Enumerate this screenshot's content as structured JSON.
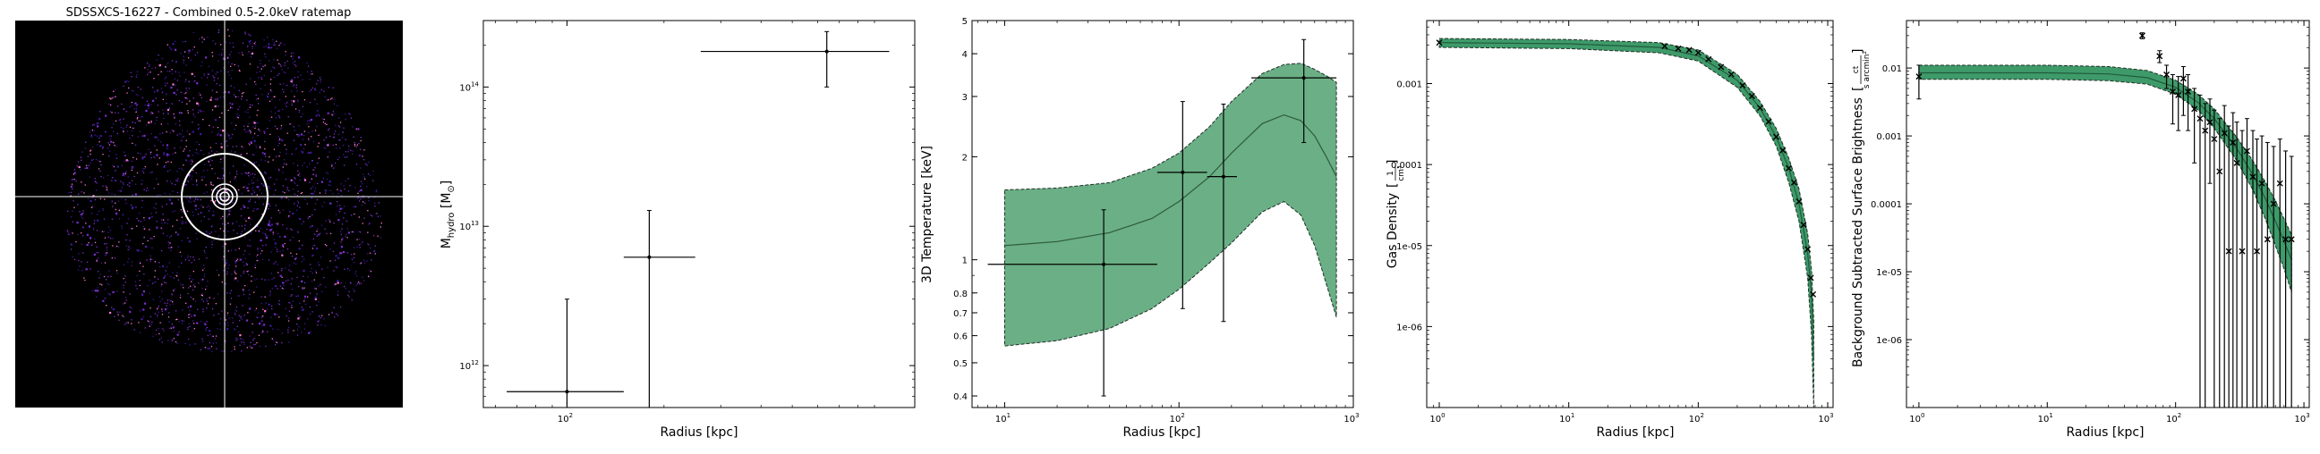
{
  "ratemap": {
    "title": "SDSSXCS-16227 - Combined 0.5-2.0keV ratemap",
    "colors": {
      "background": "#000000",
      "crosshair": "#ffffff",
      "rings": "#ffffff",
      "points_low": "#3a1a9a",
      "points_mid": "#7a2fd0",
      "points_high": "#ff7ad0"
    }
  },
  "charts": [
    {
      "name": "hydrostatic-mass",
      "xlabel": "Radius [kpc]",
      "ylabel_main": "M",
      "ylabel_sub": "hydro",
      "ylabel_unit": "[M",
      "ylabel_unit_sub": "⊙",
      "ylabel_close": "]",
      "xticks": [
        {
          "v": 100,
          "base": "10",
          "exp": "2"
        }
      ],
      "yticks": [
        {
          "v": 1000000000000.0,
          "base": "10",
          "exp": "12"
        },
        {
          "v": 10000000000000.0,
          "base": "10",
          "exp": "13"
        },
        {
          "v": 100000000000000.0,
          "base": "10",
          "exp": "14"
        }
      ]
    },
    {
      "name": "temperature-profile",
      "xlabel": "Radius [kpc]",
      "ylabel": "3D Temperature [keV]",
      "xticks": [
        {
          "v": 10,
          "base": "10",
          "exp": "1"
        },
        {
          "v": 100,
          "base": "10",
          "exp": "2"
        },
        {
          "v": 1000,
          "base": "10",
          "exp": "3"
        }
      ],
      "yticks": [
        {
          "v": 0.4,
          "label": "0.4"
        },
        {
          "v": 0.5,
          "label": "0.5"
        },
        {
          "v": 0.6,
          "label": "0.6"
        },
        {
          "v": 0.7,
          "label": "0.7"
        },
        {
          "v": 0.8,
          "label": "0.8"
        },
        {
          "v": 1,
          "label": "1"
        },
        {
          "v": 2,
          "label": "2"
        },
        {
          "v": 3,
          "label": "3"
        },
        {
          "v": 4,
          "label": "4"
        },
        {
          "v": 5,
          "label": "5"
        }
      ]
    },
    {
      "name": "gas-density",
      "xlabel": "Radius [kpc]",
      "ylabel": "Gas Density",
      "ylabel_frac_top": "1",
      "ylabel_frac_bot": "cm³",
      "xticks": [
        {
          "v": 1,
          "base": "10",
          "exp": "0"
        },
        {
          "v": 10,
          "base": "10",
          "exp": "1"
        },
        {
          "v": 100,
          "base": "10",
          "exp": "2"
        },
        {
          "v": 1000,
          "base": "10",
          "exp": "3"
        }
      ],
      "yticks": [
        {
          "v": 1e-06,
          "label": "1e-06"
        },
        {
          "v": 1e-05,
          "label": "1e-05"
        },
        {
          "v": 0.0001,
          "label": "0.0001"
        },
        {
          "v": 0.001,
          "label": "0.001"
        }
      ]
    },
    {
      "name": "surface-brightness",
      "xlabel": "Radius [kpc]",
      "ylabel": "Background Subtracted Surface Brightness",
      "ylabel_frac_top": "ct",
      "ylabel_frac_bot": "s arcmin²",
      "xticks": [
        {
          "v": 1,
          "base": "10",
          "exp": "0"
        },
        {
          "v": 10,
          "base": "10",
          "exp": "1"
        },
        {
          "v": 100,
          "base": "10",
          "exp": "2"
        },
        {
          "v": 1000,
          "base": "10",
          "exp": "3"
        }
      ],
      "yticks": [
        {
          "v": 1e-06,
          "label": "1e-06"
        },
        {
          "v": 1e-05,
          "label": "1e-05"
        },
        {
          "v": 0.0001,
          "label": "0.0001"
        },
        {
          "v": 0.001,
          "label": "0.001"
        },
        {
          "v": 0.01,
          "label": "0.01"
        }
      ]
    }
  ],
  "chart_data": [
    {
      "type": "scatter",
      "title": "",
      "xlabel": "Radius [kpc]",
      "ylabel": "M_hydro [M_⊙]",
      "xscale": "log",
      "yscale": "log",
      "xlim": [
        55,
        1200
      ],
      "ylim": [
        500000000000.0,
        300000000000000.0
      ],
      "points": [
        {
          "x": 100,
          "xlo": 65,
          "xhi": 150,
          "y": 650000000000.0,
          "ylo": 100000000000.0,
          "yhi": 3000000000000.0
        },
        {
          "x": 180,
          "xlo": 150,
          "xhi": 250,
          "y": 6000000000000.0,
          "ylo": 100000000000.0,
          "yhi": 13000000000000.0
        },
        {
          "x": 640,
          "xlo": 260,
          "xhi": 1000,
          "y": 180000000000000.0,
          "ylo": 100000000000000.0,
          "yhi": 250000000000000.0
        }
      ]
    },
    {
      "type": "line",
      "title": "",
      "xlabel": "Radius [kpc]",
      "ylabel": "3D Temperature [keV]",
      "xscale": "log",
      "yscale": "log",
      "xlim": [
        6.5,
        1000
      ],
      "ylim": [
        0.37,
        5
      ],
      "model": [
        {
          "x": 10,
          "y": 1.1,
          "lo": 0.56,
          "hi": 1.6
        },
        {
          "x": 20,
          "y": 1.13,
          "lo": 0.58,
          "hi": 1.62
        },
        {
          "x": 40,
          "y": 1.2,
          "lo": 0.63,
          "hi": 1.68
        },
        {
          "x": 70,
          "y": 1.32,
          "lo": 0.72,
          "hi": 1.85
        },
        {
          "x": 100,
          "y": 1.48,
          "lo": 0.82,
          "hi": 2.05
        },
        {
          "x": 150,
          "y": 1.75,
          "lo": 0.98,
          "hi": 2.45
        },
        {
          "x": 200,
          "y": 2.05,
          "lo": 1.12,
          "hi": 2.9
        },
        {
          "x": 300,
          "y": 2.5,
          "lo": 1.38,
          "hi": 3.5
        },
        {
          "x": 400,
          "y": 2.65,
          "lo": 1.48,
          "hi": 3.72
        },
        {
          "x": 500,
          "y": 2.55,
          "lo": 1.35,
          "hi": 3.75
        },
        {
          "x": 600,
          "y": 2.3,
          "lo": 1.1,
          "hi": 3.6
        },
        {
          "x": 700,
          "y": 2.0,
          "lo": 0.85,
          "hi": 3.45
        },
        {
          "x": 800,
          "y": 1.75,
          "lo": 0.68,
          "hi": 3.3
        }
      ],
      "points": [
        {
          "x": 37,
          "xlo": 8,
          "xhi": 75,
          "y": 0.97,
          "ylo": 0.4,
          "yhi": 1.4
        },
        {
          "x": 105,
          "xlo": 75,
          "xhi": 145,
          "y": 1.8,
          "ylo": 0.72,
          "yhi": 2.9
        },
        {
          "x": 180,
          "xlo": 145,
          "xhi": 215,
          "y": 1.75,
          "ylo": 0.66,
          "yhi": 2.85
        },
        {
          "x": 520,
          "xlo": 260,
          "xhi": 800,
          "y": 3.4,
          "ylo": 2.2,
          "yhi": 4.4
        }
      ]
    },
    {
      "type": "line",
      "title": "",
      "xlabel": "Radius [kpc]",
      "ylabel": "Gas Density [1/cm³]",
      "xscale": "log",
      "yscale": "log",
      "xlim": [
        0.8,
        1100
      ],
      "ylim": [
        1e-07,
        0.006
      ],
      "model": [
        {
          "x": 1,
          "y": 0.0032,
          "lo": 0.0028,
          "hi": 0.0036
        },
        {
          "x": 10,
          "y": 0.0031,
          "lo": 0.0027,
          "hi": 0.0035
        },
        {
          "x": 50,
          "y": 0.0028,
          "lo": 0.0024,
          "hi": 0.0032
        },
        {
          "x": 100,
          "y": 0.0022,
          "lo": 0.0019,
          "hi": 0.0026
        },
        {
          "x": 200,
          "y": 0.0011,
          "lo": 0.0009,
          "hi": 0.0013
        },
        {
          "x": 300,
          "y": 0.0005,
          "lo": 0.0004,
          "hi": 0.0006
        },
        {
          "x": 400,
          "y": 0.00022,
          "lo": 0.00017,
          "hi": 0.00028
        },
        {
          "x": 500,
          "y": 9e-05,
          "lo": 6e-05,
          "hi": 0.00012
        },
        {
          "x": 600,
          "y": 3.3e-05,
          "lo": 2e-05,
          "hi": 5e-05
        },
        {
          "x": 700,
          "y": 8e-06,
          "lo": 4e-06,
          "hi": 1.4e-05
        },
        {
          "x": 750,
          "y": 2.5e-06,
          "lo": 8e-07,
          "hi": 5e-06
        },
        {
          "x": 780,
          "y": 4e-07,
          "lo": 1e-07,
          "hi": 1.2e-06
        }
      ],
      "points": [
        {
          "x": 1,
          "y": 0.0032
        },
        {
          "x": 55,
          "y": 0.0029
        },
        {
          "x": 70,
          "y": 0.0027
        },
        {
          "x": 85,
          "y": 0.0026
        },
        {
          "x": 100,
          "y": 0.0024
        },
        {
          "x": 120,
          "y": 0.002
        },
        {
          "x": 150,
          "y": 0.0016
        },
        {
          "x": 180,
          "y": 0.0013
        },
        {
          "x": 220,
          "y": 0.00095
        },
        {
          "x": 260,
          "y": 0.0007
        },
        {
          "x": 300,
          "y": 0.0005
        },
        {
          "x": 350,
          "y": 0.00034
        },
        {
          "x": 400,
          "y": 0.00022
        },
        {
          "x": 450,
          "y": 0.00015
        },
        {
          "x": 500,
          "y": 9e-05
        },
        {
          "x": 550,
          "y": 6e-05
        },
        {
          "x": 600,
          "y": 3.5e-05
        },
        {
          "x": 650,
          "y": 1.8e-05
        },
        {
          "x": 700,
          "y": 9e-06
        },
        {
          "x": 740,
          "y": 4e-06
        },
        {
          "x": 770,
          "y": 2.5e-06
        }
      ]
    },
    {
      "type": "line",
      "title": "",
      "xlabel": "Radius [kpc]",
      "ylabel": "Background Subtracted Surface Brightness [ct/(s arcmin²)]",
      "xscale": "log",
      "yscale": "log",
      "xlim": [
        0.8,
        1100
      ],
      "ylim": [
        1e-07,
        0.05
      ],
      "model": [
        {
          "x": 1,
          "y": 0.0085,
          "lo": 0.0068,
          "hi": 0.011
        },
        {
          "x": 10,
          "y": 0.0085,
          "lo": 0.0068,
          "hi": 0.011
        },
        {
          "x": 30,
          "y": 0.0082,
          "lo": 0.0065,
          "hi": 0.0105
        },
        {
          "x": 60,
          "y": 0.0072,
          "lo": 0.0058,
          "hi": 0.0092
        },
        {
          "x": 100,
          "y": 0.0052,
          "lo": 0.0041,
          "hi": 0.0066
        },
        {
          "x": 150,
          "y": 0.0031,
          "lo": 0.0024,
          "hi": 0.0041
        },
        {
          "x": 200,
          "y": 0.0018,
          "lo": 0.0013,
          "hi": 0.0025
        },
        {
          "x": 300,
          "y": 0.00065,
          "lo": 0.00043,
          "hi": 0.00095
        },
        {
          "x": 400,
          "y": 0.00027,
          "lo": 0.00016,
          "hi": 0.00043
        },
        {
          "x": 500,
          "y": 0.00012,
          "lo": 6e-05,
          "hi": 0.00021
        },
        {
          "x": 600,
          "y": 5.5e-05,
          "lo": 2.4e-05,
          "hi": 0.00011
        },
        {
          "x": 700,
          "y": 2.8e-05,
          "lo": 1.1e-05,
          "hi": 6e-05
        },
        {
          "x": 800,
          "y": 1.5e-05,
          "lo": 5e-06,
          "hi": 3.5e-05
        }
      ],
      "points": [
        {
          "x": 1,
          "y": 0.0075,
          "ylo": 0.0035,
          "yhi": 0.011
        },
        {
          "x": 55,
          "y": 0.03,
          "ylo": 0.027,
          "yhi": 0.033
        },
        {
          "x": 75,
          "y": 0.015,
          "ylo": 0.012,
          "yhi": 0.018
        },
        {
          "x": 85,
          "y": 0.008,
          "ylo": 0.005,
          "yhi": 0.011
        },
        {
          "x": 95,
          "y": 0.0045,
          "ylo": 0.0015,
          "yhi": 0.008
        },
        {
          "x": 105,
          "y": 0.004,
          "ylo": 0.0012,
          "yhi": 0.0075
        },
        {
          "x": 115,
          "y": 0.007,
          "ylo": 0.002,
          "yhi": 0.0105
        },
        {
          "x": 125,
          "y": 0.0045,
          "ylo": 0.0012,
          "yhi": 0.008
        },
        {
          "x": 140,
          "y": 0.0025,
          "ylo": 0.0004,
          "yhi": 0.005
        },
        {
          "x": 155,
          "y": 0.0018,
          "ylo": 1e-07,
          "yhi": 0.004
        },
        {
          "x": 170,
          "y": 0.0012,
          "ylo": 1e-07,
          "yhi": 0.003
        },
        {
          "x": 185,
          "y": 0.0016,
          "ylo": 0.0002,
          "yhi": 0.0035
        },
        {
          "x": 200,
          "y": 0.0009,
          "ylo": 1e-07,
          "yhi": 0.0024
        },
        {
          "x": 220,
          "y": 0.0003,
          "ylo": 1e-07,
          "yhi": 0.0018
        },
        {
          "x": 240,
          "y": 0.0011,
          "ylo": 1e-07,
          "yhi": 0.0028
        },
        {
          "x": 260,
          "y": 2e-05,
          "ylo": 1e-07,
          "yhi": 0.0014
        },
        {
          "x": 280,
          "y": 0.0008,
          "ylo": 1e-07,
          "yhi": 0.0022
        },
        {
          "x": 300,
          "y": 0.0004,
          "ylo": 1e-07,
          "yhi": 0.0016
        },
        {
          "x": 330,
          "y": 2e-05,
          "ylo": 1e-07,
          "yhi": 0.0012
        },
        {
          "x": 360,
          "y": 0.0006,
          "ylo": 1e-07,
          "yhi": 0.0018
        },
        {
          "x": 400,
          "y": 0.00025,
          "ylo": 1e-07,
          "yhi": 0.0012
        },
        {
          "x": 430,
          "y": 2e-05,
          "ylo": 1e-07,
          "yhi": 0.0009
        },
        {
          "x": 470,
          "y": 0.0002,
          "ylo": 1e-07,
          "yhi": 0.001
        },
        {
          "x": 520,
          "y": 3e-05,
          "ylo": 1e-07,
          "yhi": 0.0008
        },
        {
          "x": 580,
          "y": 0.0001,
          "ylo": 1e-07,
          "yhi": 0.0007
        },
        {
          "x": 650,
          "y": 0.0002,
          "ylo": 1e-07,
          "yhi": 0.0009
        },
        {
          "x": 720,
          "y": 3e-05,
          "ylo": 1e-07,
          "yhi": 0.0006
        },
        {
          "x": 800,
          "y": 3e-05,
          "ylo": 1e-07,
          "yhi": 0.0005
        }
      ]
    }
  ]
}
